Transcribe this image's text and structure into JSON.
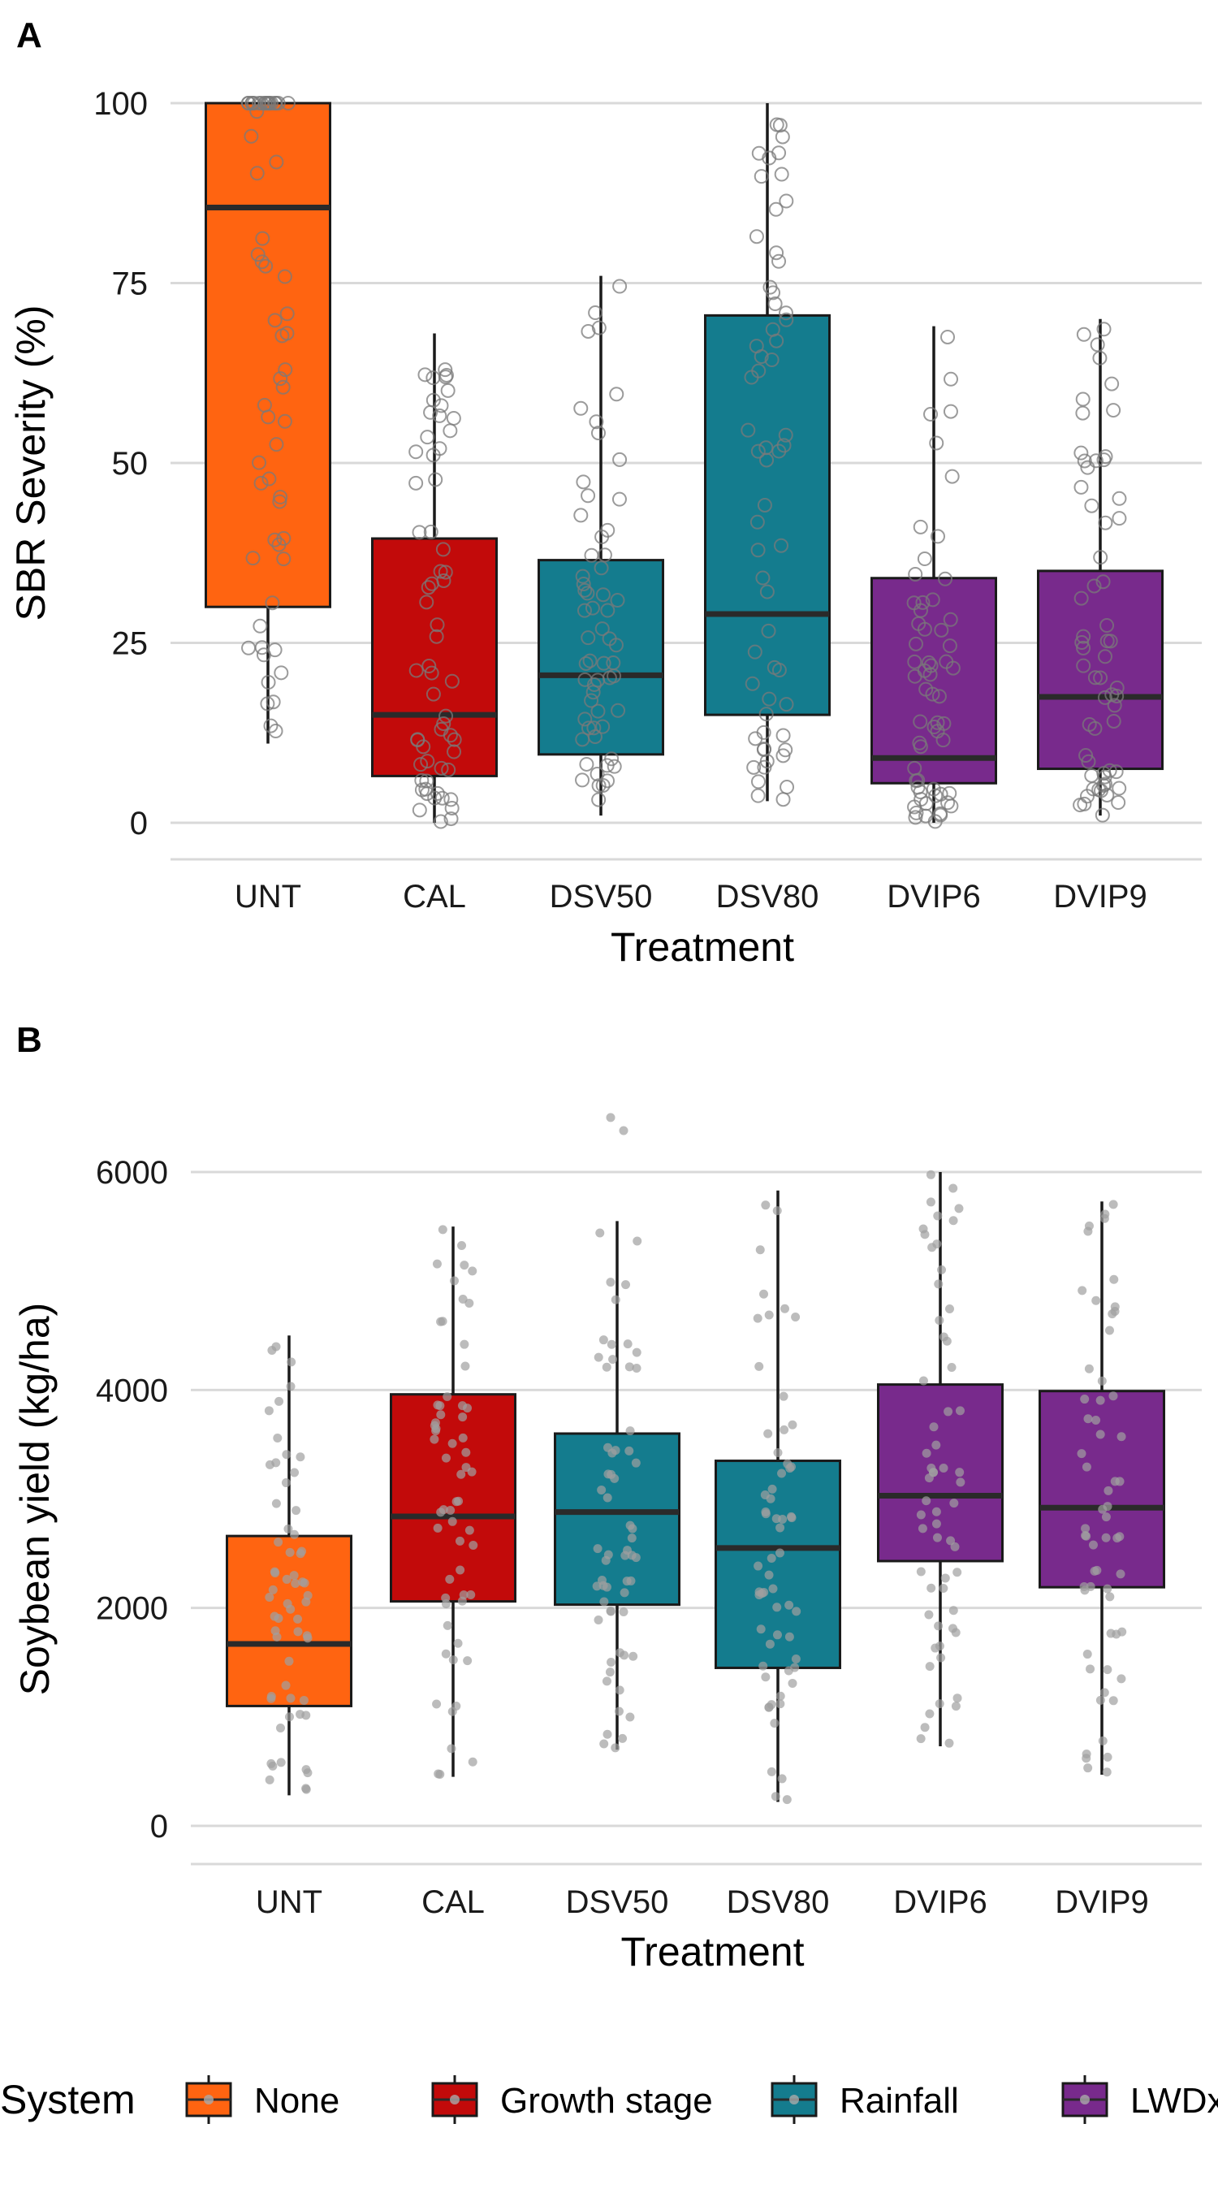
{
  "chart_data": [
    {
      "panel": "A",
      "type": "box",
      "xlabel": "Treatment",
      "ylabel": "SBR Severity (%)",
      "ylim": [
        -4,
        104
      ],
      "yticks": [
        0,
        25,
        50,
        75,
        100
      ],
      "grid": "horizontal",
      "categories": [
        "UNT",
        "CAL",
        "DSV50",
        "DSV80",
        "DVIP6",
        "DVIP9"
      ],
      "boxes": [
        {
          "category": "UNT",
          "system": "None",
          "min": 11,
          "q1": 30,
          "median": 85.5,
          "q3": 100,
          "max": 100
        },
        {
          "category": "CAL",
          "system": "Growth stage",
          "min": 0,
          "q1": 6.5,
          "median": 15,
          "q3": 39.5,
          "max": 68
        },
        {
          "category": "DSV50",
          "system": "Rainfall",
          "min": 1,
          "q1": 9.5,
          "median": 20.5,
          "q3": 36.5,
          "max": 76
        },
        {
          "category": "DSV80",
          "system": "Rainfall",
          "min": 3,
          "q1": 15,
          "median": 29,
          "q3": 70.5,
          "max": 100
        },
        {
          "category": "DVIP6",
          "system": "LWDxT",
          "min": 0,
          "q1": 5.5,
          "median": 9,
          "q3": 34,
          "max": 69
        },
        {
          "category": "DVIP9",
          "system": "LWDxT",
          "min": 1,
          "q1": 7.5,
          "median": 17.5,
          "q3": 35,
          "max": 70
        }
      ],
      "points_style": "hollow"
    },
    {
      "panel": "B",
      "type": "box",
      "xlabel": "Treatment",
      "ylabel": "Soybean yield (kg/ha)",
      "ylim": [
        -350,
        6850
      ],
      "yticks": [
        0,
        2000,
        4000,
        6000
      ],
      "grid": "horizontal",
      "categories": [
        "UNT",
        "CAL",
        "DSV50",
        "DSV80",
        "DVIP6",
        "DVIP9"
      ],
      "boxes": [
        {
          "category": "UNT",
          "system": "None",
          "min": 280,
          "q1": 1100,
          "median": 1670,
          "q3": 2660,
          "max": 4500
        },
        {
          "category": "CAL",
          "system": "Growth stage",
          "min": 450,
          "q1": 2060,
          "median": 2840,
          "q3": 3960,
          "max": 5500
        },
        {
          "category": "DSV50",
          "system": "Rainfall",
          "min": 700,
          "q1": 2030,
          "median": 2880,
          "q3": 3600,
          "max": 5550
        },
        {
          "category": "DSV80",
          "system": "Rainfall",
          "min": 220,
          "q1": 1450,
          "median": 2550,
          "q3": 3350,
          "max": 5830
        },
        {
          "category": "DVIP6",
          "system": "LWDxT",
          "min": 730,
          "q1": 2430,
          "median": 3030,
          "q3": 4050,
          "max": 6000
        },
        {
          "category": "DVIP9",
          "system": "LWDxT",
          "min": 470,
          "q1": 2190,
          "median": 2920,
          "q3": 3990,
          "max": 5730
        }
      ],
      "outliers": [
        {
          "category": "DSV50",
          "values": [
            6500,
            6380
          ]
        }
      ],
      "points_style": "filled"
    }
  ],
  "legend": {
    "title": "System",
    "position": "bottom",
    "items": [
      {
        "label": "None",
        "color": "#ff6411"
      },
      {
        "label": "Growth stage",
        "color": "#c20a0a"
      },
      {
        "label": "Rainfall",
        "color": "#147c8e"
      },
      {
        "label": "LWDxT",
        "color": "#782a8c"
      }
    ]
  },
  "colors": {
    "None": "#ff6411",
    "Growth stage": "#c20a0a",
    "Rainfall": "#147c8e",
    "LWDxT": "#782a8c",
    "grid": "#d9d9d9",
    "points": "#a0a0a0"
  }
}
